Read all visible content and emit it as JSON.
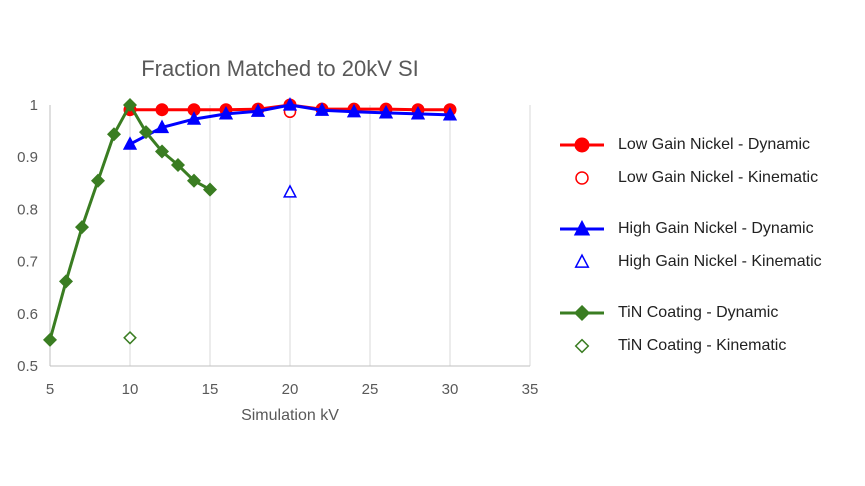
{
  "chart_data": {
    "type": "scatter",
    "title": "Fraction Matched to 20kV SI",
    "xlabel": "Simulation kV",
    "ylabel": "",
    "xlim": [
      5,
      35
    ],
    "ylim": [
      0.5,
      1.0
    ],
    "xticks": [
      "5",
      "10",
      "15",
      "20",
      "25",
      "30",
      "35"
    ],
    "yticks": [
      "0.5",
      "0.6",
      "0.7",
      "0.8",
      "0.9",
      "1"
    ],
    "grid": "vertical",
    "legend_position": "right",
    "series": [
      {
        "name": "Low Gain Nickel - Dynamic",
        "color": "#ff0000",
        "marker": "circle",
        "filled": true,
        "line": true,
        "x": [
          10,
          12,
          14,
          16,
          18,
          20,
          22,
          24,
          26,
          28,
          30
        ],
        "y": [
          0.991,
          0.991,
          0.991,
          0.991,
          0.992,
          1.0,
          0.992,
          0.992,
          0.992,
          0.991,
          0.991
        ]
      },
      {
        "name": "Low Gain Nickel - Kinematic",
        "color": "#ff0000",
        "marker": "circle",
        "filled": false,
        "line": false,
        "x": [
          20
        ],
        "y": [
          0.987
        ]
      },
      {
        "name": "High Gain Nickel - Dynamic",
        "color": "#0000ff",
        "marker": "triangle",
        "filled": true,
        "line": true,
        "x": [
          10,
          12,
          14,
          16,
          18,
          20,
          22,
          24,
          26,
          28,
          30
        ],
        "y": [
          0.925,
          0.957,
          0.973,
          0.983,
          0.988,
          1.0,
          0.99,
          0.987,
          0.985,
          0.983,
          0.981
        ]
      },
      {
        "name": "High Gain Nickel - Kinematic",
        "color": "#0000ff",
        "marker": "triangle",
        "filled": false,
        "line": false,
        "x": [
          20
        ],
        "y": [
          0.833
        ]
      },
      {
        "name": "TiN Coating - Dynamic",
        "color": "#3a7d22",
        "marker": "diamond",
        "filled": true,
        "line": true,
        "x": [
          5,
          6,
          7,
          8,
          9,
          10,
          11,
          12,
          13,
          14,
          15
        ],
        "y": [
          0.55,
          0.662,
          0.766,
          0.855,
          0.944,
          1.0,
          0.948,
          0.911,
          0.885,
          0.855,
          0.838
        ]
      },
      {
        "name": "TiN Coating - Kinematic",
        "color": "#3a7d22",
        "marker": "diamond",
        "filled": false,
        "line": false,
        "x": [
          10
        ],
        "y": [
          0.554
        ]
      }
    ]
  },
  "colors": {
    "axis": "#bfbfbf",
    "grid": "#d9d9d9",
    "text": "#595959"
  }
}
